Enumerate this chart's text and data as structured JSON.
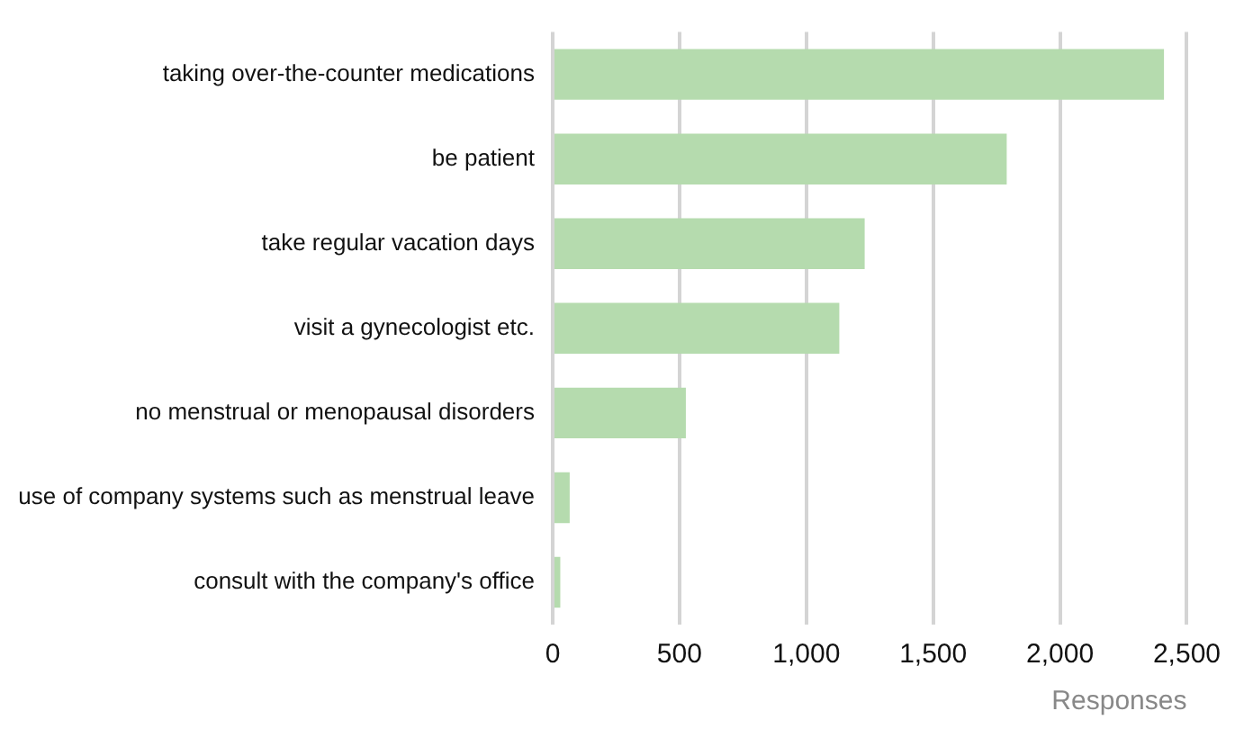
{
  "chart_data": {
    "type": "bar",
    "orientation": "horizontal",
    "xlabel": "Responses",
    "categories": [
      "taking over-the-counter medications",
      "be patient",
      "take regular vacation days",
      "visit a gynecologist etc.",
      "no menstrual or menopausal disorders",
      "use of company systems such as menstrual leave",
      "consult with the company's office"
    ],
    "values": [
      2410,
      1790,
      1230,
      1130,
      525,
      67,
      30
    ],
    "color": "#b5dbae",
    "xlim": [
      0,
      2500
    ],
    "xticks": [
      0,
      500,
      {
        "value": 1000,
        "label": "1,000"
      },
      {
        "value": 1500,
        "label": "1,500"
      },
      {
        "value": 2000,
        "label": "2,000"
      },
      {
        "value": 2500,
        "label": "2,500"
      }
    ],
    "grid": "x",
    "legend": false
  }
}
